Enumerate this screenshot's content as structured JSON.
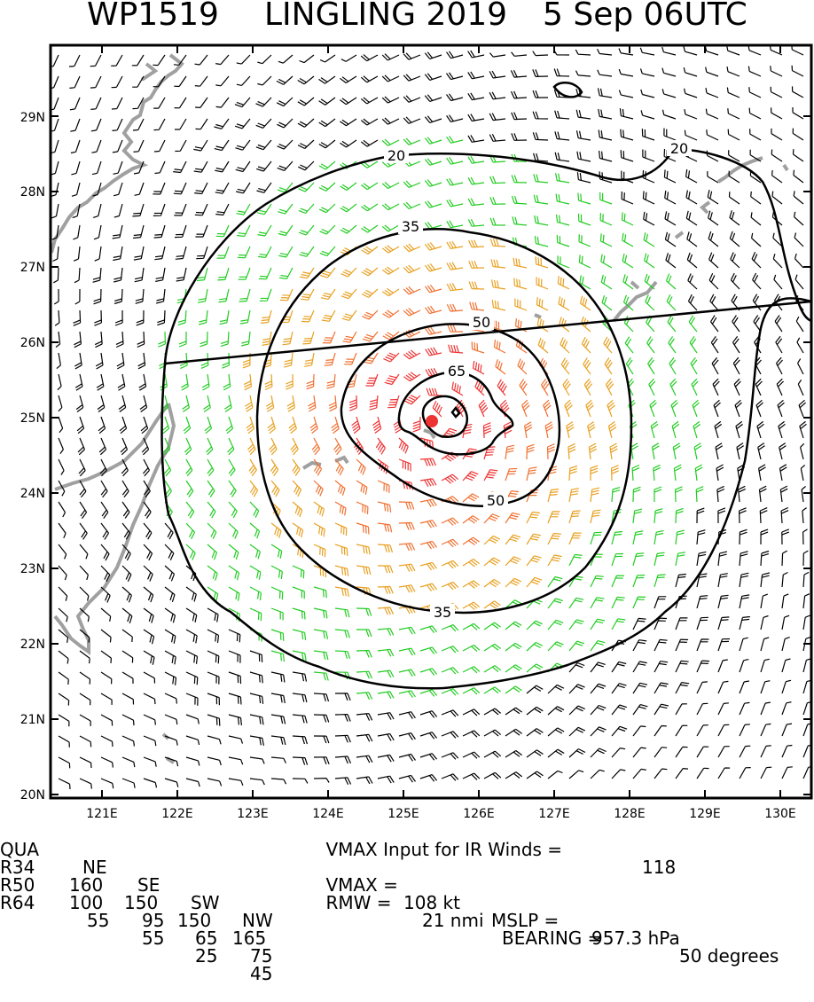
{
  "title": {
    "storm_id": "WP1519",
    "storm_name": "LINGLING 2019",
    "datetime": "5 Sep 06UTC"
  },
  "map": {
    "lat_labels": [
      "29N",
      "28N",
      "27N",
      "26N",
      "25N",
      "24N",
      "23N",
      "22N",
      "21N",
      "20N"
    ],
    "lon_labels": [
      "121E",
      "122E",
      "123E",
      "124E",
      "125E",
      "126E",
      "127E",
      "128E",
      "129E",
      "130E"
    ],
    "contour_labels": [
      "20",
      "20",
      "35",
      "35",
      "50",
      "50",
      "65"
    ],
    "colors": {
      "barb_weak": "#000000",
      "barb_34kt": "#22cc22",
      "barb_50kt": "#e8a020",
      "barb_64kt": "#f07030",
      "barb_strong": "#ee3333",
      "center": "#ee3333",
      "coast": "#a0a0a0"
    }
  },
  "radii_table": {
    "header": [
      "QUA",
      "NE",
      "SE",
      "SW",
      "NW"
    ],
    "rows": [
      [
        "R34",
        "160",
        "150",
        "150",
        "165"
      ],
      [
        "R50",
        "100",
        "95",
        "65",
        "75"
      ],
      [
        "R64",
        "55",
        "55",
        "25",
        "45"
      ]
    ]
  },
  "summary": {
    "vmax_input_label": "VMAX Input for IR Winds =",
    "vmax_input_value": "118",
    "vmax_label": "VMAX =",
    "vmax_value": "108 kt",
    "mslp_label": "MSLP =",
    "mslp_value": "957.3 hPa",
    "rmw_label": "RMW =",
    "rmw_value": "21 nmi",
    "bearing_label": "BEARING =",
    "bearing_value": "50 degrees"
  }
}
